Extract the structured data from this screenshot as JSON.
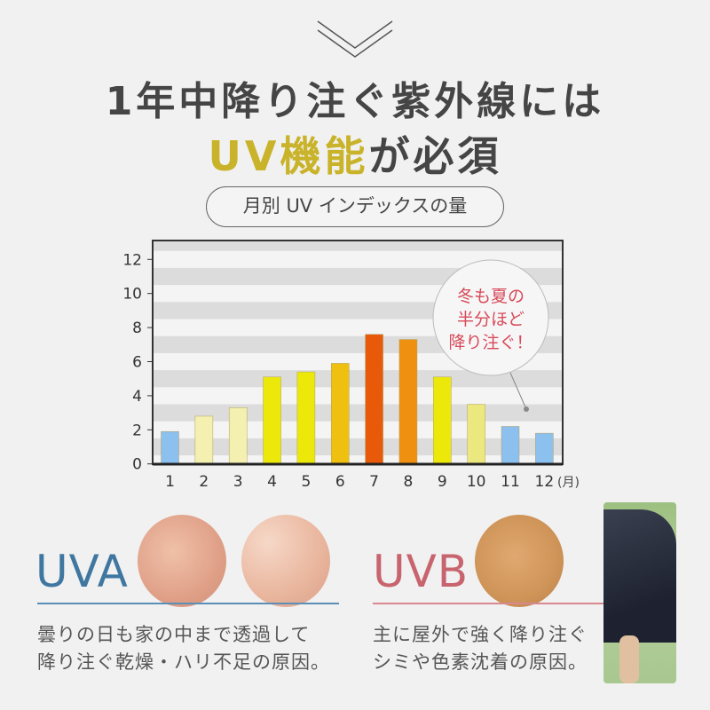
{
  "header": {
    "title_line1": "1年中降り注ぐ紫外線には",
    "title_line2_highlight": "UV機能",
    "title_line2_rest": "が必須",
    "highlight_color": "#c9b32a",
    "pill_label": "月別 UV インデックスの量"
  },
  "chart_data": {
    "type": "bar",
    "categories": [
      "1",
      "2",
      "3",
      "4",
      "5",
      "6",
      "7",
      "8",
      "9",
      "10",
      "11",
      "12"
    ],
    "values": [
      1.9,
      2.8,
      3.3,
      5.1,
      5.4,
      5.9,
      7.6,
      7.3,
      5.1,
      3.5,
      2.2,
      1.8
    ],
    "bar_colors": [
      "#8cc0ee",
      "#f3f0b0",
      "#f3f0b0",
      "#ece80a",
      "#ece80a",
      "#f0c010",
      "#e85a0a",
      "#f09010",
      "#ece80a",
      "#ece880",
      "#8cc0ee",
      "#8cc0ee"
    ],
    "ylim": [
      0,
      12.5
    ],
    "yticks": [
      "0",
      "2",
      "4",
      "6",
      "8",
      "10",
      "12"
    ],
    "x_unit": "(月)",
    "annotation": [
      "冬も夏の",
      "半分ほど",
      "降り注ぐ！"
    ],
    "annotation_color": "#d84a5a",
    "grid": "horizontal-stripes"
  },
  "uva": {
    "label": "UVA",
    "color": "#3f77a0",
    "desc_line1": "曇りの日も家の中まで透過して",
    "desc_line2": "降り注ぐ乾燥・ハリ不足の原因。"
  },
  "uvb": {
    "label": "UVB",
    "color": "#c8646e",
    "desc_line1": "主に屋外で強く降り注ぐ",
    "desc_line2": "シミや色素沈着の原因。"
  }
}
